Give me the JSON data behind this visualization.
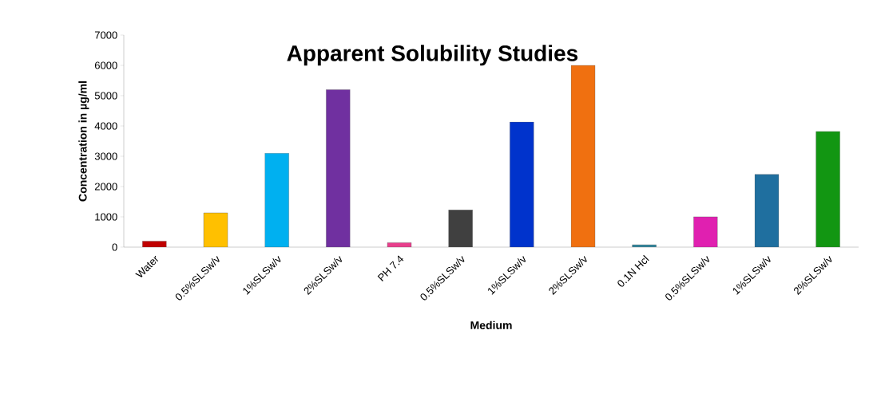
{
  "chart_data": {
    "type": "bar",
    "title": "Apparent Solubility Studies",
    "xlabel": "Medium",
    "ylabel": "Concentration in µg/ml",
    "categories": [
      "Water",
      "0.5%SLSw/v",
      "1%SLSw/v",
      "2%SLSw/v",
      "PH 7.4",
      "0.5%SLSw/v",
      "1%SLSw/v",
      "2%SLSw/v",
      "0.1N Hcl",
      "0.5%SLSw/v",
      "1%SLSw/v",
      "2%SLSw/v"
    ],
    "values": [
      200,
      1130,
      3100,
      5200,
      150,
      1230,
      4130,
      6000,
      80,
      1000,
      2400,
      3820
    ],
    "colors": [
      "#c00000",
      "#ffc000",
      "#00b0f0",
      "#7030a0",
      "#e83e8c",
      "#404040",
      "#0033cc",
      "#f07010",
      "#31859c",
      "#e020b0",
      "#1f6f9f",
      "#129612"
    ],
    "ylim": [
      0,
      7000
    ],
    "yticks": [
      0,
      1000,
      2000,
      3000,
      4000,
      5000,
      6000,
      7000
    ],
    "grid": false
  }
}
